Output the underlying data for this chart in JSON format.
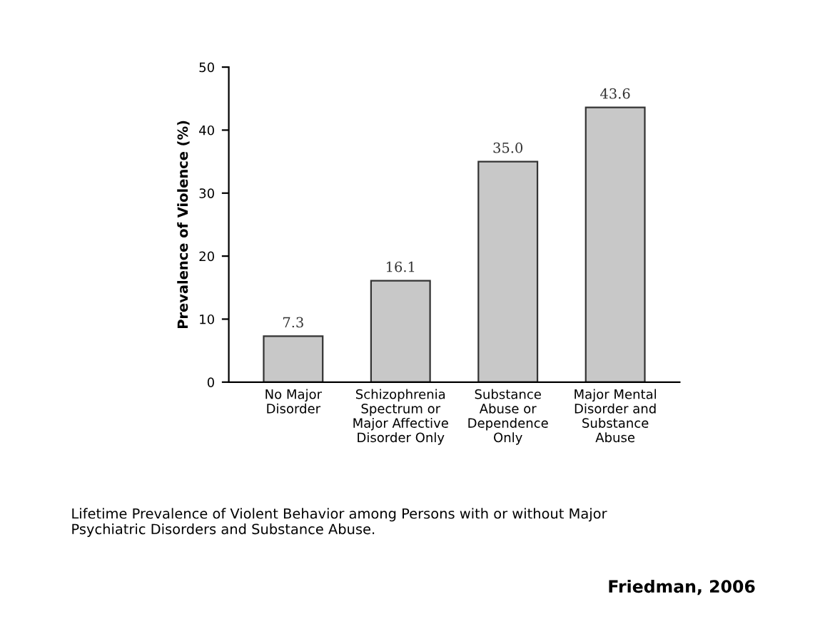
{
  "chart_data": {
    "type": "bar",
    "categories": [
      "No Major\nDisorder",
      "Schizophrenia\nSpectrum or\nMajor Affective\nDisorder Only",
      "Substance\nAbuse or\nDependence\nOnly",
      "Major Mental\nDisorder and\nSubstance\nAbuse"
    ],
    "values": [
      7.3,
      16.1,
      35.0,
      43.6
    ],
    "value_labels": [
      "7.3",
      "16.1",
      "35.0",
      "43.6"
    ],
    "color": "#c8c8c8",
    "ylabel": "Prevalence of Violence (%)",
    "ylim": [
      0,
      50
    ],
    "yticks": [
      0,
      10,
      20,
      30,
      40,
      50
    ],
    "grid": false,
    "annotations": [
      "Lifetime Prevalence of Violent Behavior among Persons with or without Major\nPsychiatric Disorders and Substance Abuse.",
      "Friedman, 2006"
    ]
  }
}
